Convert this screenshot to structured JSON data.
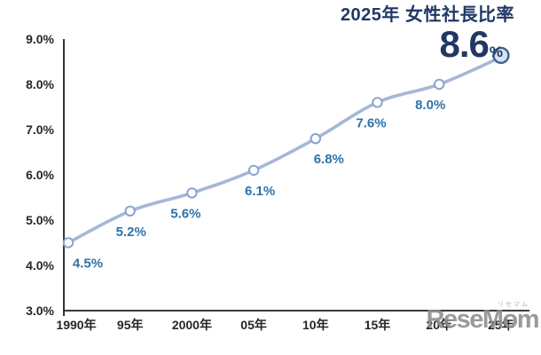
{
  "header": {
    "title": "2025年 女性社長比率",
    "big_value": "8.6",
    "big_unit": "%"
  },
  "watermark": {
    "logo": "ReseMom",
    "ruby": "リセマム"
  },
  "colors": {
    "title_text": "#1f3864",
    "line": "#a6b7d8",
    "marker_fill": "#ffffff",
    "marker_stroke": "#8ca3cc",
    "last_marker_fill": "#dae3f1",
    "last_marker_stroke": "#40628f",
    "data_label": "#2e73a8",
    "axis_line": "#1f1f1f",
    "axis_text": "#262626",
    "watermark_text": "#8d8d8d"
  },
  "chart_data": {
    "type": "line",
    "title": "2025年 女性社長比率",
    "categories": [
      "1990年",
      "95年",
      "2000年",
      "05年",
      "10年",
      "15年",
      "20年",
      "25年"
    ],
    "values": [
      4.5,
      5.2,
      5.6,
      6.1,
      6.8,
      7.6,
      8.0,
      8.6
    ],
    "point_labels": [
      "4.5%",
      "5.2%",
      "5.6%",
      "6.1%",
      "6.8%",
      "7.6%",
      "8.0%",
      "8.6%"
    ],
    "y_ticks": [
      "3.0%",
      "4.0%",
      "5.0%",
      "6.0%",
      "7.0%",
      "8.0%",
      "9.0%"
    ],
    "ylim": [
      3.0,
      9.0
    ],
    "xlabel": "",
    "ylabel": "",
    "grid": false,
    "legend": false,
    "smoothed": true,
    "highlight_last_point": true
  }
}
